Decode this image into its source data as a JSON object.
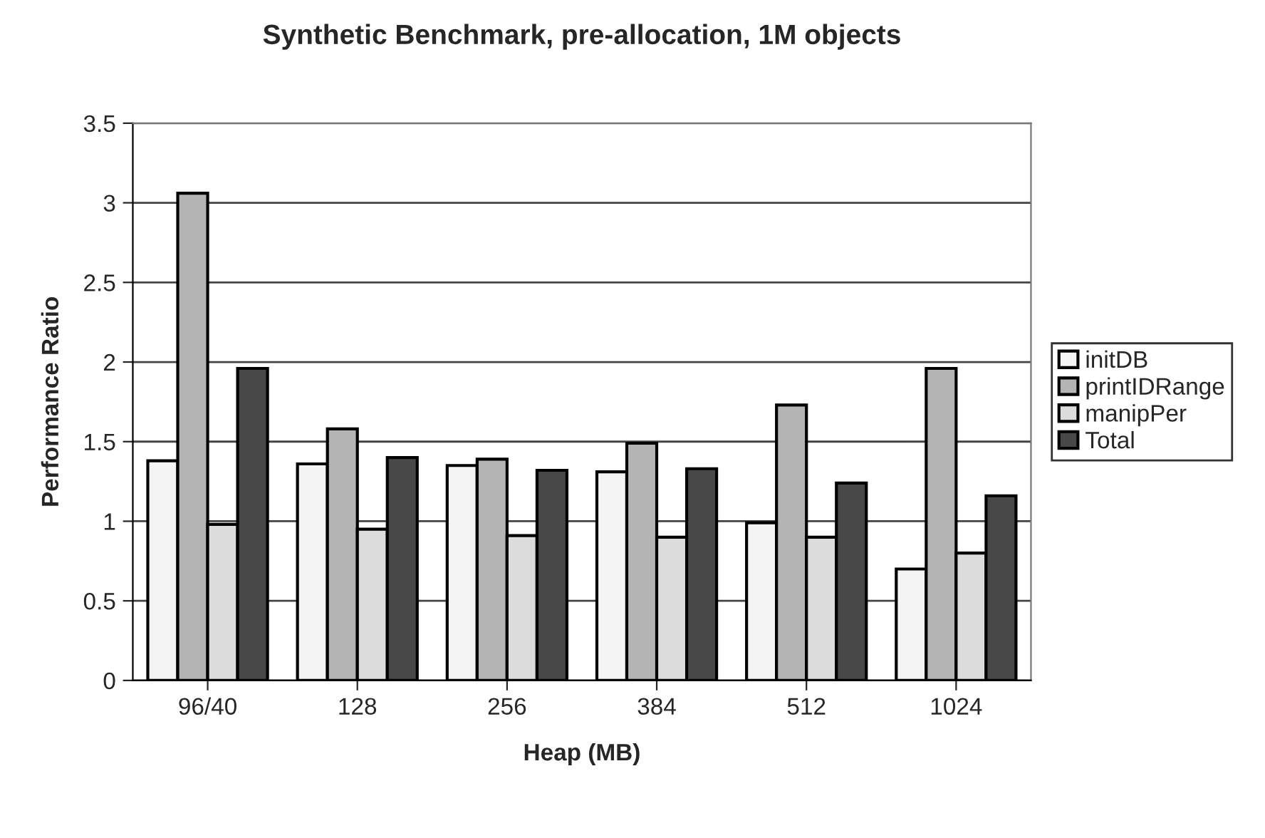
{
  "chart_data": {
    "type": "bar",
    "title": "Synthetic Benchmark, pre-allocation, 1M objects",
    "xlabel": "Heap (MB)",
    "ylabel": "Performance Ratio",
    "categories": [
      "96/40",
      "128",
      "256",
      "384",
      "512",
      "1024"
    ],
    "series": [
      {
        "name": "initDB",
        "color": "#f4f4f4",
        "values": [
          1.38,
          1.36,
          1.35,
          1.31,
          0.99,
          0.7
        ]
      },
      {
        "name": "printIDRange",
        "color": "#b4b4b4",
        "values": [
          3.06,
          1.58,
          1.39,
          1.49,
          1.73,
          1.96
        ]
      },
      {
        "name": "manipPer",
        "color": "#dcdcdc",
        "values": [
          0.98,
          0.95,
          0.91,
          0.9,
          0.9,
          0.8
        ]
      },
      {
        "name": "Total",
        "color": "#484848",
        "values": [
          1.96,
          1.4,
          1.32,
          1.33,
          1.24,
          1.16
        ]
      }
    ],
    "ylim": [
      0,
      3.5
    ],
    "yticks": [
      0,
      0.5,
      1,
      1.5,
      2,
      2.5,
      3,
      3.5
    ],
    "grid": "y",
    "legend": "right"
  }
}
